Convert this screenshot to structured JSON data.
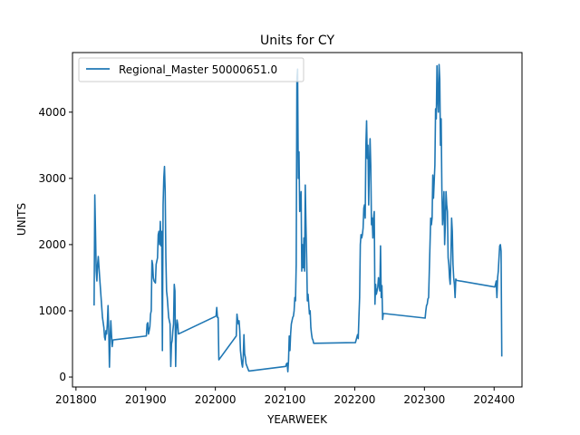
{
  "chart_data": {
    "type": "line",
    "title": "Units for CY",
    "xlabel": "YEARWEEK",
    "ylabel": "UNITS",
    "xlim": [
      201795,
      202440
    ],
    "ylim": [
      -150,
      4900
    ],
    "xticks": [
      201800,
      201900,
      202000,
      202100,
      202200,
      202300,
      202400
    ],
    "yticks": [
      0,
      1000,
      2000,
      3000,
      4000
    ],
    "grid": false,
    "legend_position": "top-left",
    "series": [
      {
        "name": "Regional_Master 50000651.0",
        "color": "#1f77b4",
        "points": [
          [
            201826,
            1080
          ],
          [
            201827,
            2750
          ],
          [
            201828,
            2200
          ],
          [
            201829,
            1600
          ],
          [
            201830,
            1450
          ],
          [
            201831,
            1700
          ],
          [
            201832,
            1820
          ],
          [
            201834,
            1500
          ],
          [
            201836,
            1200
          ],
          [
            201838,
            900
          ],
          [
            201840,
            750
          ],
          [
            201841,
            600
          ],
          [
            201842,
            560
          ],
          [
            201843,
            700
          ],
          [
            201844,
            650
          ],
          [
            201845,
            800
          ],
          [
            201846,
            1080
          ],
          [
            201847,
            700
          ],
          [
            201848,
            150
          ],
          [
            201849,
            580
          ],
          [
            201850,
            850
          ],
          [
            201851,
            640
          ],
          [
            201852,
            460
          ],
          [
            201853,
            560
          ],
          [
            201901,
            620
          ],
          [
            201902,
            800
          ],
          [
            201903,
            820
          ],
          [
            201904,
            650
          ],
          [
            201905,
            700
          ],
          [
            201906,
            760
          ],
          [
            201907,
            950
          ],
          [
            201908,
            1000
          ],
          [
            201909,
            1760
          ],
          [
            201910,
            1700
          ],
          [
            201911,
            1500
          ],
          [
            201912,
            1450
          ],
          [
            201914,
            1420
          ],
          [
            201915,
            1700
          ],
          [
            201917,
            1800
          ],
          [
            201918,
            2150
          ],
          [
            201919,
            2200
          ],
          [
            201920,
            2000
          ],
          [
            201921,
            2350
          ],
          [
            201922,
            1980
          ],
          [
            201923,
            2200
          ],
          [
            201924,
            400
          ],
          [
            201925,
            2600
          ],
          [
            201926,
            3000
          ],
          [
            201927,
            3180
          ],
          [
            201928,
            2800
          ],
          [
            201929,
            1800
          ],
          [
            201930,
            1300
          ],
          [
            201931,
            1200
          ],
          [
            201933,
            900
          ],
          [
            201935,
            800
          ],
          [
            201936,
            160
          ],
          [
            201937,
            500
          ],
          [
            201938,
            550
          ],
          [
            201939,
            700
          ],
          [
            201940,
            800
          ],
          [
            201941,
            1400
          ],
          [
            201942,
            1300
          ],
          [
            201943,
            160
          ],
          [
            201944,
            700
          ],
          [
            201945,
            860
          ],
          [
            201946,
            800
          ],
          [
            201947,
            650
          ],
          [
            202001,
            920
          ],
          [
            202002,
            1050
          ],
          [
            202003,
            900
          ],
          [
            202004,
            900
          ],
          [
            202005,
            260
          ],
          [
            202030,
            620
          ],
          [
            202031,
            950
          ],
          [
            202032,
            860
          ],
          [
            202033,
            800
          ],
          [
            202034,
            850
          ],
          [
            202035,
            700
          ],
          [
            202036,
            400
          ],
          [
            202038,
            200
          ],
          [
            202039,
            150
          ],
          [
            202040,
            300
          ],
          [
            202041,
            640
          ],
          [
            202042,
            350
          ],
          [
            202043,
            300
          ],
          [
            202044,
            200
          ],
          [
            202048,
            90
          ],
          [
            202101,
            160
          ],
          [
            202102,
            200
          ],
          [
            202103,
            210
          ],
          [
            202104,
            80
          ],
          [
            202105,
            250
          ],
          [
            202106,
            620
          ],
          [
            202107,
            400
          ],
          [
            202108,
            650
          ],
          [
            202109,
            800
          ],
          [
            202110,
            850
          ],
          [
            202111,
            900
          ],
          [
            202112,
            920
          ],
          [
            202113,
            1000
          ],
          [
            202114,
            1200
          ],
          [
            202115,
            1150
          ],
          [
            202116,
            1700
          ],
          [
            202117,
            4500
          ],
          [
            202118,
            4650
          ],
          [
            202119,
            3000
          ],
          [
            202120,
            3400
          ],
          [
            202121,
            2500
          ],
          [
            202122,
            2600
          ],
          [
            202123,
            2800
          ],
          [
            202124,
            1600
          ],
          [
            202125,
            2000
          ],
          [
            202126,
            1650
          ],
          [
            202127,
            2100
          ],
          [
            202128,
            1600
          ],
          [
            202129,
            2900
          ],
          [
            202130,
            2300
          ],
          [
            202131,
            1800
          ],
          [
            202132,
            1150
          ],
          [
            202133,
            1250
          ],
          [
            202134,
            1100
          ],
          [
            202135,
            950
          ],
          [
            202136,
            1000
          ],
          [
            202137,
            750
          ],
          [
            202138,
            650
          ],
          [
            202139,
            580
          ],
          [
            202140,
            560
          ],
          [
            202141,
            510
          ],
          [
            202201,
            520
          ],
          [
            202202,
            560
          ],
          [
            202203,
            600
          ],
          [
            202204,
            640
          ],
          [
            202205,
            580
          ],
          [
            202206,
            900
          ],
          [
            202207,
            1200
          ],
          [
            202208,
            2000
          ],
          [
            202209,
            2150
          ],
          [
            202210,
            2100
          ],
          [
            202211,
            2150
          ],
          [
            202212,
            2250
          ],
          [
            202213,
            2550
          ],
          [
            202214,
            2600
          ],
          [
            202215,
            2400
          ],
          [
            202216,
            3500
          ],
          [
            202217,
            3870
          ],
          [
            202218,
            3300
          ],
          [
            202219,
            3500
          ],
          [
            202220,
            2600
          ],
          [
            202221,
            3200
          ],
          [
            202222,
            3600
          ],
          [
            202223,
            3200
          ],
          [
            202224,
            2300
          ],
          [
            202225,
            2400
          ],
          [
            202226,
            2100
          ],
          [
            202227,
            2400
          ],
          [
            202228,
            2500
          ],
          [
            202229,
            1100
          ],
          [
            202230,
            1400
          ],
          [
            202231,
            1250
          ],
          [
            202232,
            1300
          ],
          [
            202233,
            1350
          ],
          [
            202234,
            1500
          ],
          [
            202235,
            1400
          ],
          [
            202236,
            1300
          ],
          [
            202237,
            1980
          ],
          [
            202238,
            1200
          ],
          [
            202239,
            1380
          ],
          [
            202240,
            870
          ],
          [
            202241,
            960
          ],
          [
            202301,
            890
          ],
          [
            202302,
            1000
          ],
          [
            202303,
            1080
          ],
          [
            202304,
            1100
          ],
          [
            202305,
            1180
          ],
          [
            202306,
            1200
          ],
          [
            202307,
            1600
          ],
          [
            202308,
            2000
          ],
          [
            202309,
            2400
          ],
          [
            202310,
            2300
          ],
          [
            202311,
            2400
          ],
          [
            202312,
            3050
          ],
          [
            202313,
            2700
          ],
          [
            202314,
            2950
          ],
          [
            202315,
            3200
          ],
          [
            202316,
            4050
          ],
          [
            202317,
            3900
          ],
          [
            202318,
            4700
          ],
          [
            202319,
            4200
          ],
          [
            202320,
            4000
          ],
          [
            202321,
            4720
          ],
          [
            202322,
            4500
          ],
          [
            202323,
            3500
          ],
          [
            202324,
            3900
          ],
          [
            202325,
            2850
          ],
          [
            202326,
            2300
          ],
          [
            202327,
            2500
          ],
          [
            202328,
            2800
          ],
          [
            202329,
            2000
          ],
          [
            202330,
            2300
          ],
          [
            202331,
            2800
          ],
          [
            202332,
            2600
          ],
          [
            202333,
            2500
          ],
          [
            202334,
            1800
          ],
          [
            202335,
            1700
          ],
          [
            202336,
            1500
          ],
          [
            202337,
            1400
          ],
          [
            202338,
            1800
          ],
          [
            202339,
            2400
          ],
          [
            202340,
            2200
          ],
          [
            202341,
            1700
          ],
          [
            202342,
            1500
          ],
          [
            202343,
            1400
          ],
          [
            202344,
            1200
          ],
          [
            202345,
            1480
          ],
          [
            202346,
            1460
          ],
          [
            202401,
            1360
          ],
          [
            202402,
            1400
          ],
          [
            202403,
            1450
          ],
          [
            202404,
            1200
          ],
          [
            202405,
            1500
          ],
          [
            202406,
            1600
          ],
          [
            202407,
            1800
          ],
          [
            202408,
            1980
          ],
          [
            202409,
            2000
          ],
          [
            202410,
            1900
          ],
          [
            202411,
            310
          ]
        ]
      }
    ]
  }
}
